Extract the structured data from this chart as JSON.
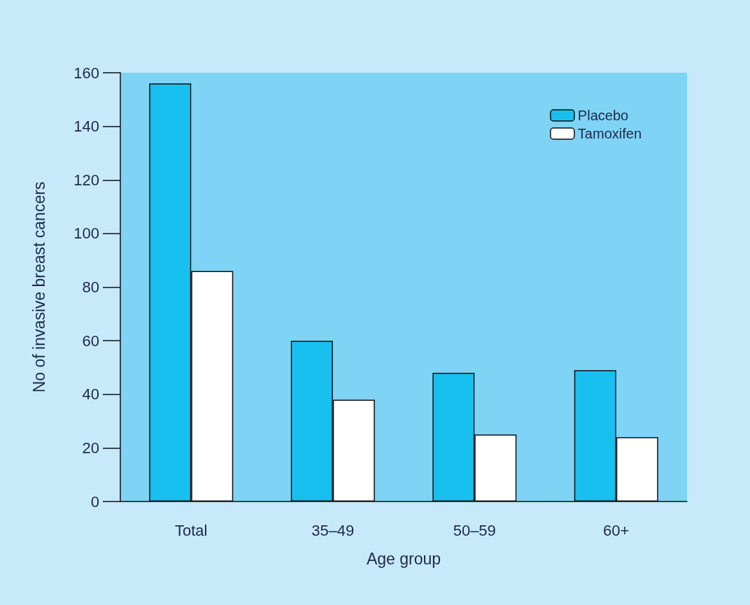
{
  "chart_data": {
    "type": "bar",
    "xlabel": "Age group",
    "ylabel": "No of invasive breast cancers",
    "categories": [
      "Total",
      "35–49",
      "50–59",
      "60+"
    ],
    "series": [
      {
        "name": "Placebo",
        "color": "#18c0ef",
        "values": [
          156,
          60,
          48,
          49
        ]
      },
      {
        "name": "Tamoxifen",
        "color": "#ffffff",
        "values": [
          86,
          38,
          25,
          24
        ]
      }
    ],
    "ylim": [
      0,
      160
    ],
    "yticks": [
      0,
      20,
      40,
      60,
      80,
      100,
      120,
      140,
      160
    ],
    "grid": false,
    "legend": "top right"
  }
}
